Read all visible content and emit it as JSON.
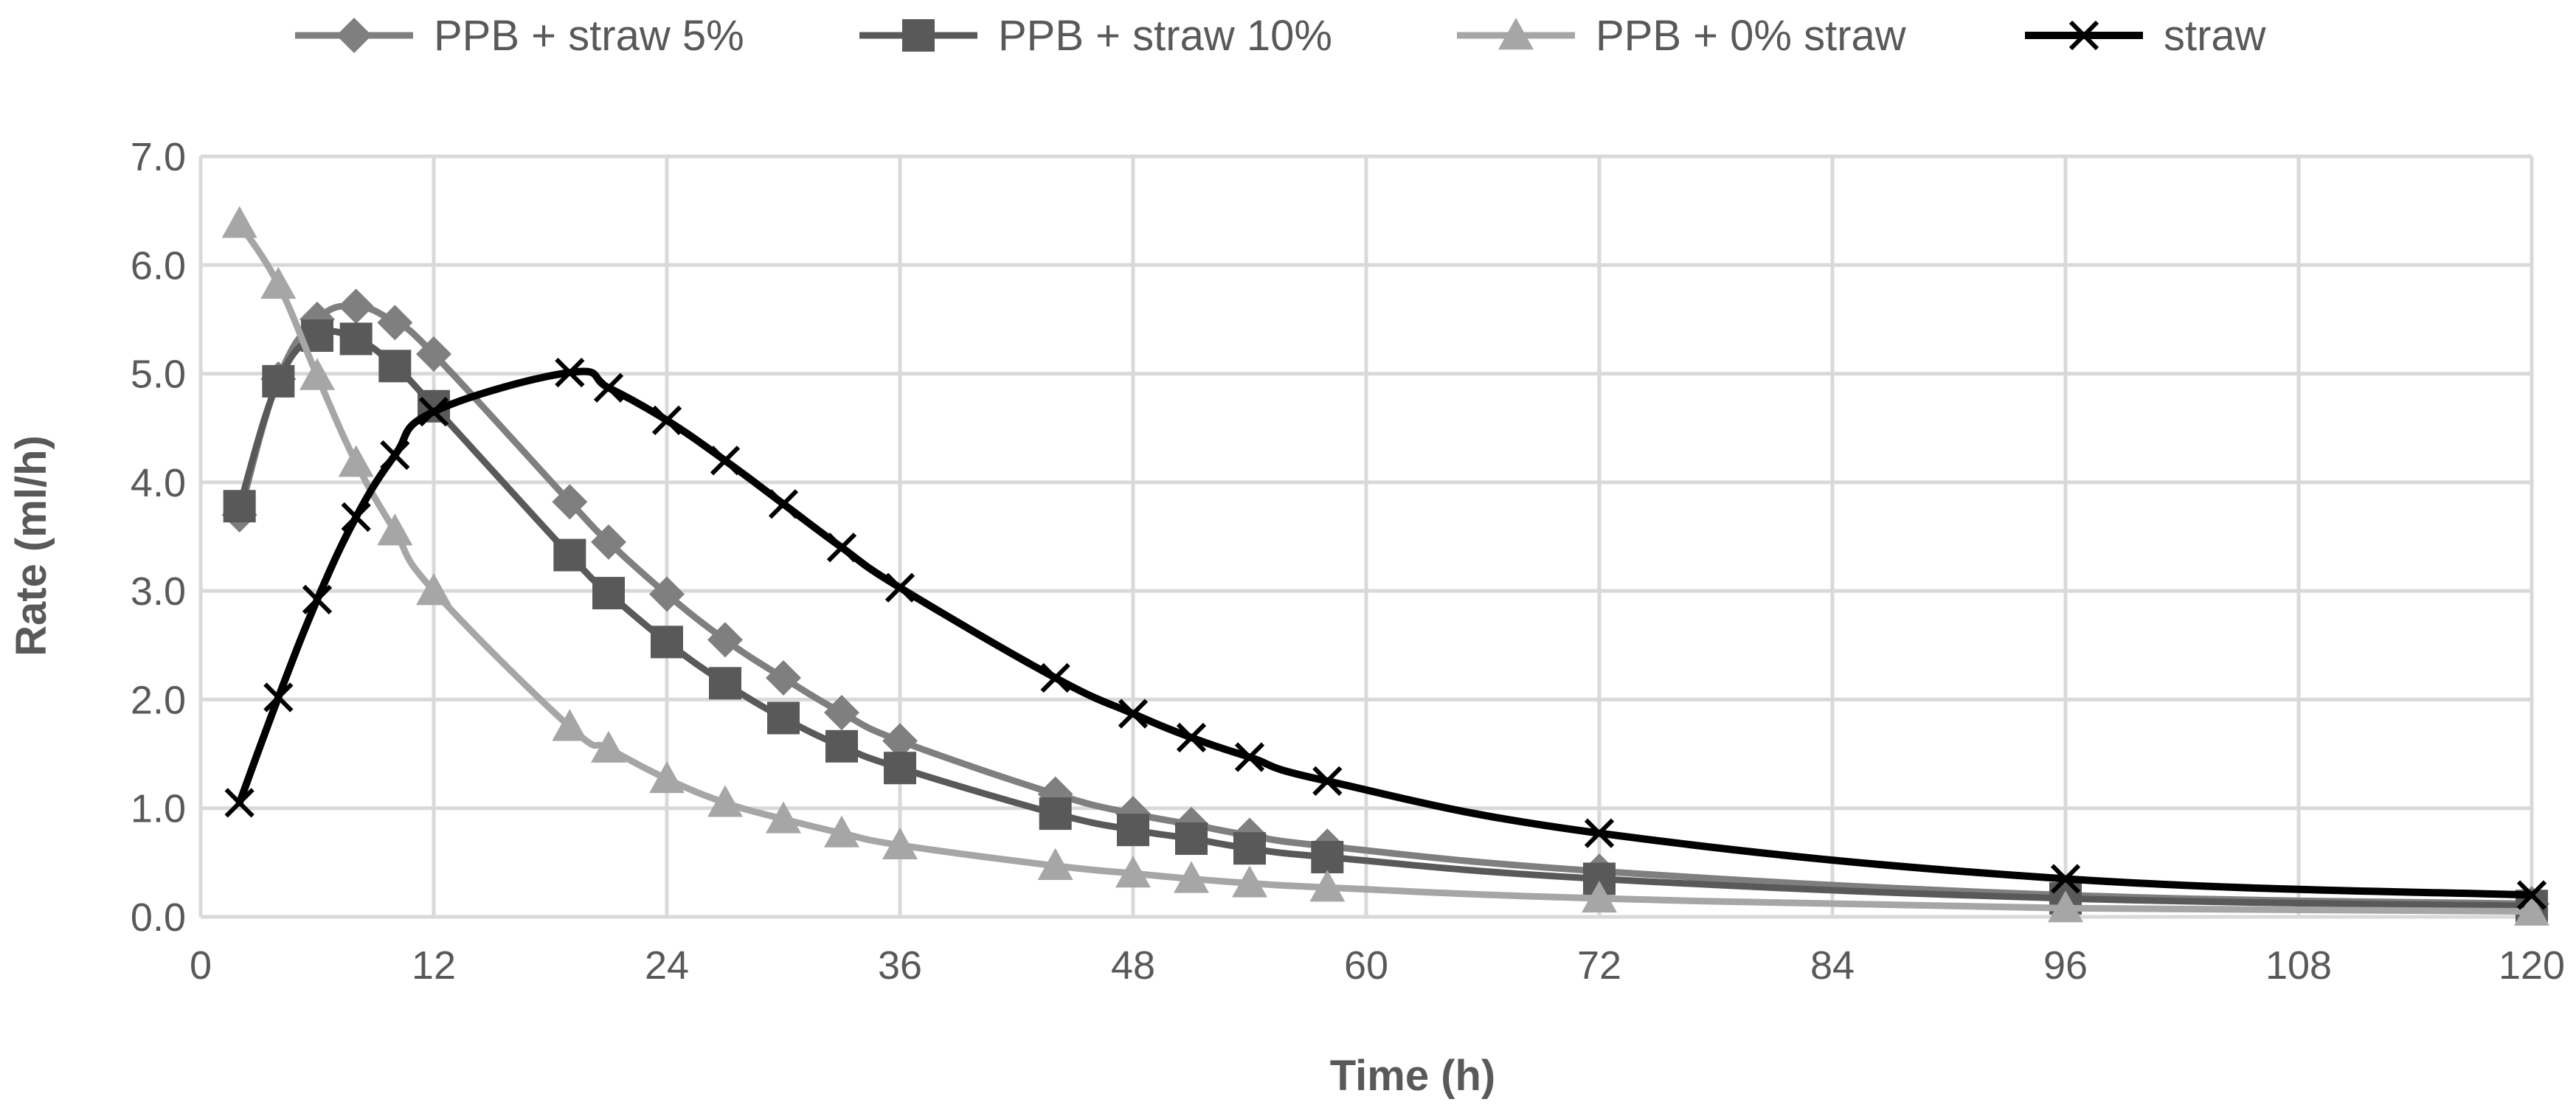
{
  "chart_data": {
    "type": "line",
    "title": "",
    "xlabel": "Time (h)",
    "ylabel": "Rate  (ml/h)",
    "xlim": [
      0,
      120
    ],
    "ylim": [
      0,
      7
    ],
    "x_ticks": [
      "0",
      "12",
      "24",
      "36",
      "48",
      "60",
      "72",
      "84",
      "96",
      "108",
      "120"
    ],
    "y_ticks": [
      "0.0",
      "1.0",
      "2.0",
      "3.0",
      "4.0",
      "5.0",
      "6.0",
      "7.0"
    ],
    "grid": true,
    "legend_position": "top",
    "series": [
      {
        "name": "PPB + straw 5%",
        "marker": "diamond",
        "color": "#7f7f7f",
        "x": [
          2,
          4,
          6,
          8,
          10,
          12,
          19,
          21,
          24,
          27,
          30,
          33,
          36,
          44,
          48,
          51,
          54,
          58,
          72,
          96,
          120
        ],
        "y": [
          3.7,
          4.95,
          5.5,
          5.62,
          5.47,
          5.18,
          3.82,
          3.45,
          2.97,
          2.55,
          2.2,
          1.88,
          1.62,
          1.13,
          0.95,
          0.85,
          0.75,
          0.65,
          0.42,
          0.2,
          0.12
        ]
      },
      {
        "name": "PPB + straw 10%",
        "marker": "square",
        "color": "#595959",
        "x": [
          2,
          4,
          6,
          8,
          10,
          12,
          19,
          21,
          24,
          27,
          30,
          33,
          36,
          44,
          48,
          51,
          54,
          58,
          72,
          96,
          120
        ],
        "y": [
          3.78,
          4.93,
          5.35,
          5.32,
          5.07,
          4.7,
          3.33,
          2.98,
          2.53,
          2.15,
          1.83,
          1.57,
          1.37,
          0.95,
          0.8,
          0.72,
          0.63,
          0.55,
          0.35,
          0.17,
          0.1
        ]
      },
      {
        "name": "PPB + 0% straw",
        "marker": "triangle",
        "color": "#a6a6a6",
        "x": [
          2,
          4,
          6,
          8,
          10,
          12,
          19,
          21,
          24,
          27,
          30,
          33,
          36,
          44,
          48,
          51,
          54,
          58,
          72,
          96,
          120
        ],
        "y": [
          6.38,
          5.82,
          4.98,
          4.18,
          3.55,
          3.0,
          1.75,
          1.55,
          1.27,
          1.05,
          0.9,
          0.77,
          0.66,
          0.47,
          0.4,
          0.35,
          0.31,
          0.27,
          0.17,
          0.08,
          0.05
        ]
      },
      {
        "name": "straw",
        "marker": "x",
        "color": "#000000",
        "x": [
          2,
          4,
          6,
          8,
          10,
          12,
          19,
          21,
          24,
          27,
          30,
          33,
          36,
          44,
          48,
          51,
          54,
          58,
          72,
          96,
          120
        ],
        "y": [
          1.05,
          2.02,
          2.92,
          3.68,
          4.25,
          4.65,
          5.01,
          4.87,
          4.57,
          4.2,
          3.8,
          3.4,
          3.03,
          2.2,
          1.87,
          1.65,
          1.47,
          1.25,
          0.77,
          0.35,
          0.2
        ]
      }
    ]
  }
}
